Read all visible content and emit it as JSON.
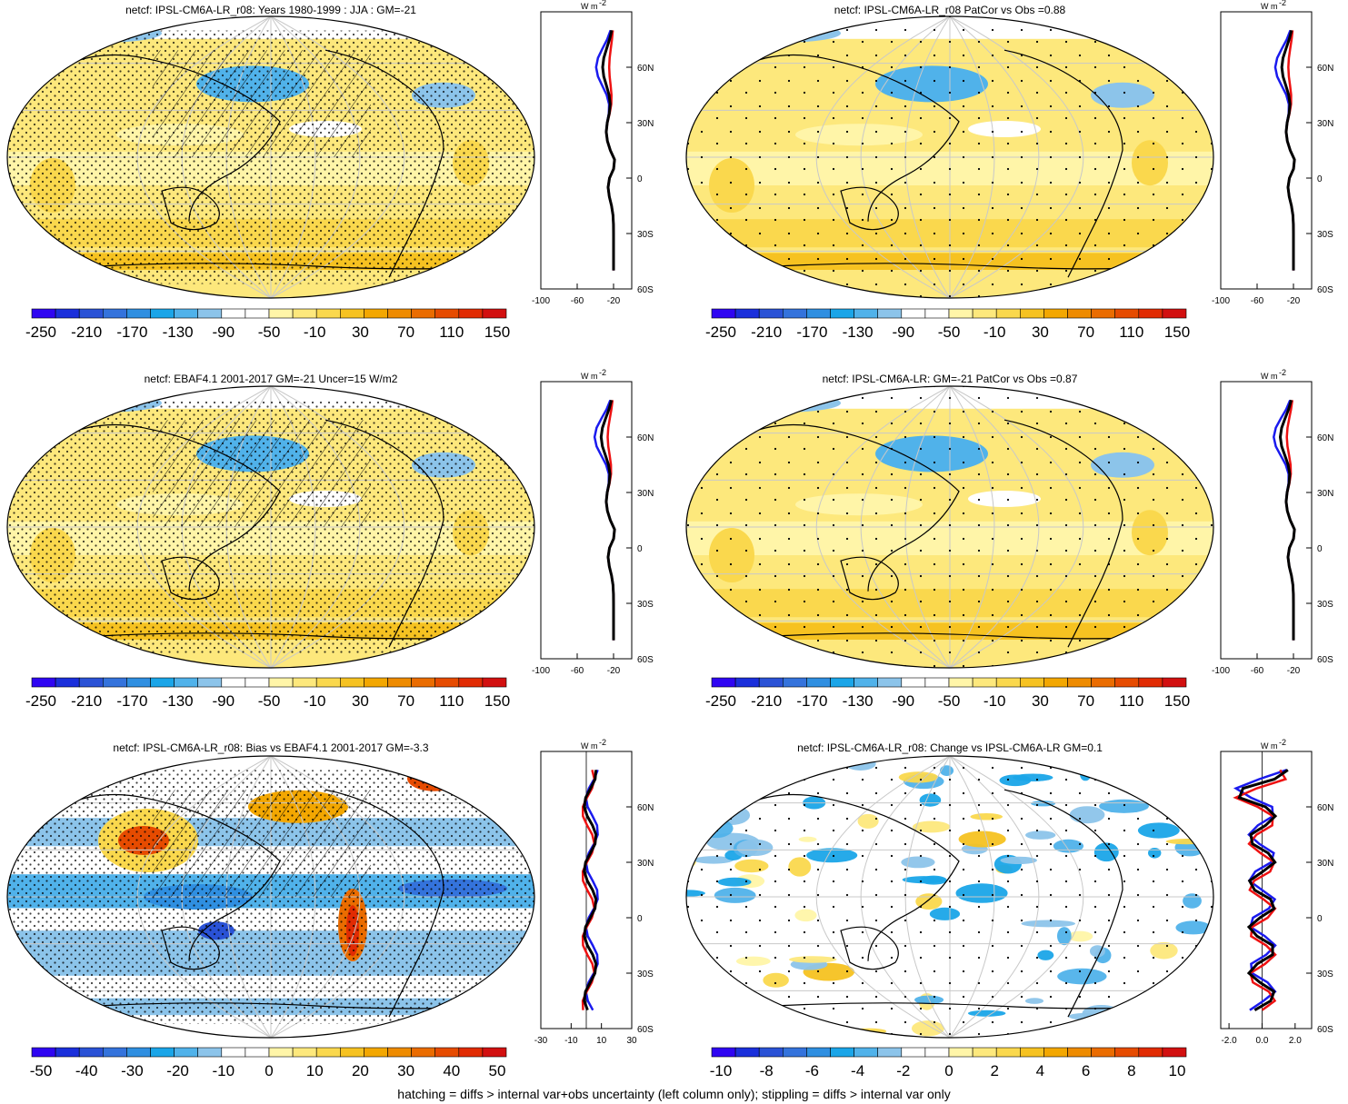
{
  "colors": {
    "rainbow_palette": [
      "#2f05f2",
      "#1a2fdb",
      "#2a52d6",
      "#3473dc",
      "#2f8fe1",
      "#1aa5e8",
      "#50b2ea",
      "#8cc4ea",
      "#ffffff",
      "#ffffff",
      "#fff5a8",
      "#fde87c",
      "#fad84d",
      "#f6c221",
      "#f3a701",
      "#ee8b00",
      "#ea6c00",
      "#e64b00",
      "#e12b03",
      "#d21010"
    ],
    "series_blue": "#1a1aee",
    "series_red": "#ee1111",
    "series_black": "#000000"
  },
  "footnote": "hatching = diffs > internal var+obs uncertainty (left column only); stippling = diffs > internal var only",
  "profile_units": "W m",
  "profile_units_exp": "-2",
  "lat_ticks": [
    "60N",
    "30N",
    "0",
    "30S",
    "60S"
  ],
  "colorbar_main": [
    "-250",
    "-210",
    "-170",
    "-130",
    "-90",
    "-50",
    "-10",
    "30",
    "70",
    "110",
    "150"
  ],
  "colorbar_bias": [
    "-50",
    "-40",
    "-30",
    "-20",
    "-10",
    "0",
    "10",
    "20",
    "30",
    "40",
    "50"
  ],
  "colorbar_change": [
    "-10",
    "-8",
    "-6",
    "-4",
    "-2",
    "0",
    "2",
    "4",
    "6",
    "8",
    "10"
  ],
  "profile_xticks_main": [
    "-100",
    "-60",
    "-20"
  ],
  "profile_xticks_bias": [
    "-30",
    "-10",
    "10",
    "30"
  ],
  "profile_xticks_change": [
    "-2.0",
    "0.0",
    "2.0"
  ],
  "panels": [
    {
      "title": "netcf: IPSL-CM6A-LR_r08: Years 1980-1999 : JJA : GM=-21",
      "field": "mean",
      "hatch": true,
      "stipple": "dense",
      "colorbar": "main",
      "profile": "main"
    },
    {
      "title": "netcf: IPSL-CM6A-LR_r08 PatCor vs Obs =0.88",
      "field": "mean",
      "hatch": false,
      "stipple": "sparse",
      "colorbar": "main",
      "profile": "main"
    },
    {
      "title": "netcf: EBAF4.1 2001-2017 GM=-21 Uncer=15 W/m2",
      "field": "mean",
      "hatch": true,
      "stipple": "dense",
      "colorbar": "main",
      "profile": "main"
    },
    {
      "title": "netcf: IPSL-CM6A-LR: GM=-21 PatCor vs Obs =0.87",
      "field": "mean",
      "hatch": false,
      "stipple": "sparse",
      "colorbar": "main",
      "profile": "main"
    },
    {
      "title": "netcf: IPSL-CM6A-LR_r08: Bias vs EBAF4.1 2001-2017 GM=-3.3",
      "field": "bias",
      "hatch": true,
      "stipple": "dense",
      "colorbar": "bias",
      "profile": "bias"
    },
    {
      "title": "netcf: IPSL-CM6A-LR_r08: Change vs IPSL-CM6A-LR GM=0.1",
      "field": "change",
      "hatch": false,
      "stipple": "sparse",
      "colorbar": "change",
      "profile": "change"
    }
  ]
}
